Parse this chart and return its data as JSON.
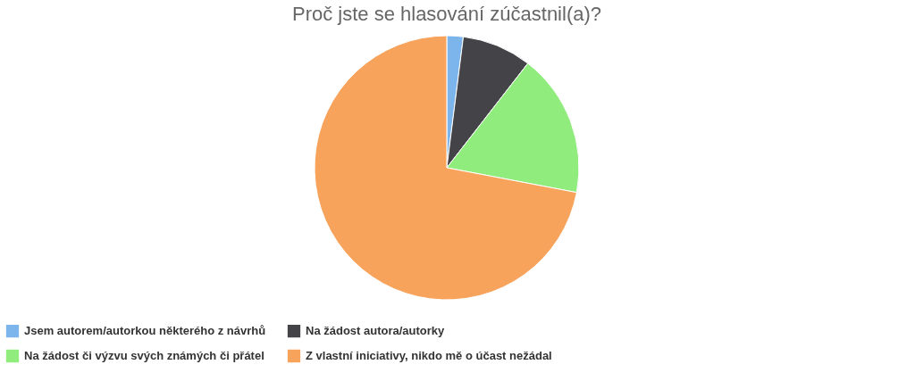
{
  "chart_data": {
    "type": "pie",
    "title": "Proč jste se hlasování zúčastnil(a)?",
    "categories": [
      "Jsem autorem/autorkou některého z návrhů",
      "Na žádost autora/autorky",
      "Na žádost či výzvu svých známých či přátel",
      "Z vlastní iniciativy, nikdo mě o účast nežádal"
    ],
    "values": [
      2,
      8.5,
      17.5,
      72
    ],
    "colors": [
      "#7cb5ec",
      "#434348",
      "#90ed7d",
      "#f7a35c"
    ],
    "legend": "bottom"
  }
}
